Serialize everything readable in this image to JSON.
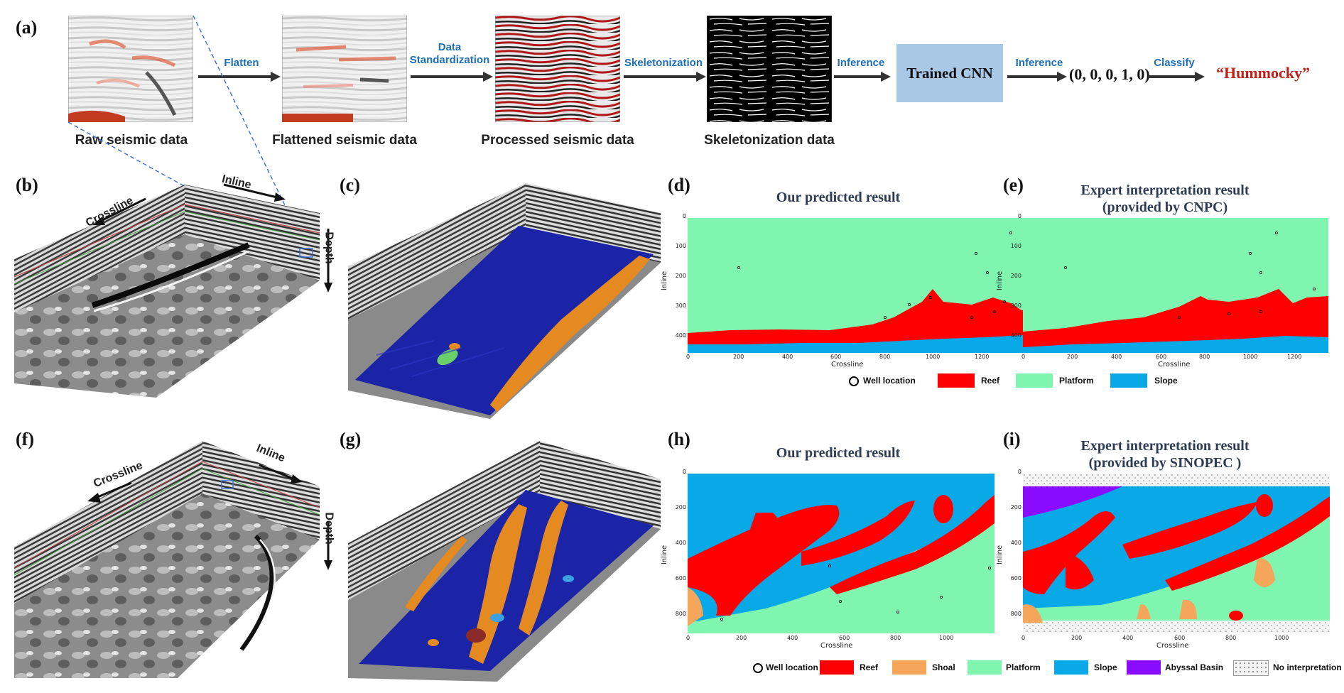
{
  "labels": {
    "a": "(a)",
    "b": "(b)",
    "c": "(c)",
    "d": "(d)",
    "e": "(e)",
    "f": "(f)",
    "g": "(g)",
    "h": "(h)",
    "i": "(i)"
  },
  "pipeline": {
    "captions": [
      "Raw seismic data",
      "Flattened seismic data",
      "Processed seismic data",
      "Skeletonization data"
    ],
    "steps": {
      "flatten": "Flatten",
      "standardization_1": "Data",
      "standardization_2": "Standardization",
      "skeletonization": "Skeletonization",
      "inference1": "Inference",
      "inference2": "Inference",
      "classify": "Classify"
    },
    "cnn": "Trained CNN",
    "vector": "(0, 0, 0, 1, 0)",
    "result": "“Hummocky”"
  },
  "cube_labels": {
    "b": {
      "inline": "Inline",
      "crossline": "Crossline",
      "depth": "Depth"
    },
    "f": {
      "inline": "Inline",
      "crossline": "Crossline",
      "depth": "Depth"
    }
  },
  "maps": {
    "d": {
      "title_1": "Our predicted result",
      "title_2": ""
    },
    "e": {
      "title_1": "Expert interpretation result",
      "title_2": "(provided by CNPC)"
    },
    "h": {
      "title_1": "Our predicted result",
      "title_2": ""
    },
    "i": {
      "title_1": "Expert interpretation result",
      "title_2": "(provided by SINOPEC )"
    },
    "top_axes": {
      "xlabel": "Crossline",
      "ylabel": "Inline",
      "xticks": [
        "0",
        "200",
        "400",
        "600",
        "800",
        "1000",
        "1200"
      ],
      "yticks": [
        "0",
        "100",
        "200",
        "300",
        "400"
      ]
    },
    "bottom_axes": {
      "xlabel": "Crossline",
      "ylabel": "Inline",
      "xticks": [
        "0",
        "200",
        "400",
        "600",
        "800",
        "1000"
      ],
      "yticks": [
        "0",
        "200",
        "400",
        "600",
        "800"
      ]
    }
  },
  "legend_top": [
    {
      "label": "Well location",
      "color": "#000000",
      "kind": "circle"
    },
    {
      "label": "Reef",
      "color": "#ff0000",
      "kind": "box"
    },
    {
      "label": "Platform",
      "color": "#80f5b0",
      "kind": "box"
    },
    {
      "label": "Slope",
      "color": "#09a8e6",
      "kind": "box"
    }
  ],
  "legend_bottom": [
    {
      "label": "Well location",
      "color": "#000000",
      "kind": "circle"
    },
    {
      "label": "Reef",
      "color": "#ff0000",
      "kind": "box"
    },
    {
      "label": "Shoal",
      "color": "#f5a65b",
      "kind": "box"
    },
    {
      "label": "Platform",
      "color": "#80f5b0",
      "kind": "box"
    },
    {
      "label": "Slope",
      "color": "#09a8e6",
      "kind": "box"
    },
    {
      "label": "Abyssal Basin",
      "color": "#8a0cff",
      "kind": "box"
    },
    {
      "label": "No interpretation",
      "color": "#f2f2f2",
      "kind": "dots"
    }
  ],
  "colors": {
    "reef": "#ff0000",
    "platform": "#80f5b0",
    "slope": "#09a8e6",
    "shoal": "#f5a65b",
    "abyssal": "#8a0cff",
    "surface": "#18219e",
    "geobody": "#e88a1f",
    "arrow": "#333333",
    "step_text": "#1f6fb5"
  }
}
